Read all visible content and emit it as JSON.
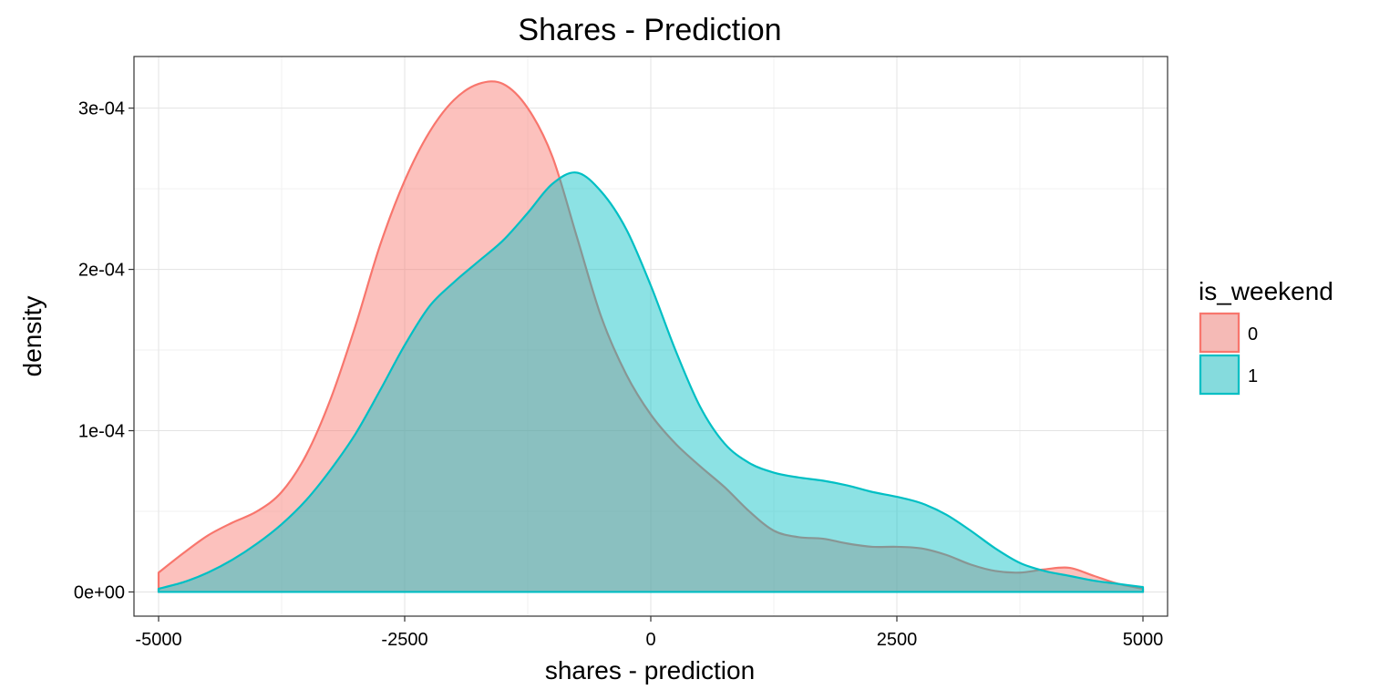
{
  "chart_data": {
    "type": "area",
    "title": "Shares - Prediction",
    "xlabel": "shares - prediction",
    "ylabel": "density",
    "xlim": [
      -5250,
      5250
    ],
    "ylim": [
      -1.5e-05,
      0.000332
    ],
    "x_ticks": [
      -5000,
      -2500,
      0,
      2500,
      5000
    ],
    "x_tick_labels": [
      "-5000",
      "-2500",
      "0",
      "2500",
      "5000"
    ],
    "y_ticks": [
      0,
      0.0001,
      0.0002,
      0.0003
    ],
    "y_tick_labels": [
      "0e+00",
      "1e-04",
      "2e-04",
      "3e-04"
    ],
    "grid": true,
    "legend": {
      "title": "is_weekend",
      "position": "right"
    },
    "series": [
      {
        "name": "0",
        "color": "#F8766D",
        "points": [
          [
            -5000,
            1.2e-05
          ],
          [
            -4750,
            2.4e-05
          ],
          [
            -4500,
            3.5e-05
          ],
          [
            -4250,
            4.3e-05
          ],
          [
            -4000,
            5e-05
          ],
          [
            -3750,
            6.2e-05
          ],
          [
            -3500,
            8.5e-05
          ],
          [
            -3250,
            0.00012
          ],
          [
            -3000,
            0.000165
          ],
          [
            -2750,
            0.000215
          ],
          [
            -2500,
            0.000255
          ],
          [
            -2250,
            0.000285
          ],
          [
            -2000,
            0.000305
          ],
          [
            -1750,
            0.000315
          ],
          [
            -1500,
            0.000315
          ],
          [
            -1250,
            0.0003
          ],
          [
            -1000,
            0.00027
          ],
          [
            -750,
            0.00022
          ],
          [
            -500,
            0.00017
          ],
          [
            -250,
            0.000135
          ],
          [
            0,
            0.00011
          ],
          [
            250,
            9.2e-05
          ],
          [
            500,
            7.8e-05
          ],
          [
            750,
            6.5e-05
          ],
          [
            1000,
            5e-05
          ],
          [
            1250,
            3.8e-05
          ],
          [
            1500,
            3.4e-05
          ],
          [
            1750,
            3.3e-05
          ],
          [
            2000,
            3e-05
          ],
          [
            2250,
            2.8e-05
          ],
          [
            2500,
            2.8e-05
          ],
          [
            2750,
            2.7e-05
          ],
          [
            3000,
            2.3e-05
          ],
          [
            3250,
            1.7e-05
          ],
          [
            3500,
            1.3e-05
          ],
          [
            3750,
            1.2e-05
          ],
          [
            4000,
            1.4e-05
          ],
          [
            4250,
            1.5e-05
          ],
          [
            4500,
            1e-05
          ],
          [
            4750,
            5e-06
          ],
          [
            5000,
            2e-06
          ]
        ]
      },
      {
        "name": "1",
        "color": "#00BFC4",
        "points": [
          [
            -5000,
            2e-06
          ],
          [
            -4750,
            6e-06
          ],
          [
            -4500,
            1.2e-05
          ],
          [
            -4250,
            2e-05
          ],
          [
            -4000,
            3e-05
          ],
          [
            -3750,
            4.2e-05
          ],
          [
            -3500,
            5.7e-05
          ],
          [
            -3250,
            7.6e-05
          ],
          [
            -3000,
            9.8e-05
          ],
          [
            -2750,
            0.000125
          ],
          [
            -2500,
            0.000153
          ],
          [
            -2250,
            0.000177
          ],
          [
            -2000,
            0.000192
          ],
          [
            -1750,
            0.000205
          ],
          [
            -1500,
            0.000218
          ],
          [
            -1250,
            0.000235
          ],
          [
            -1000,
            0.000253
          ],
          [
            -750,
            0.00026
          ],
          [
            -500,
            0.000248
          ],
          [
            -250,
            0.000225
          ],
          [
            0,
            0.00019
          ],
          [
            250,
            0.00015
          ],
          [
            500,
            0.000115
          ],
          [
            750,
            9.2e-05
          ],
          [
            1000,
            8e-05
          ],
          [
            1250,
            7.4e-05
          ],
          [
            1500,
            7.1e-05
          ],
          [
            1750,
            6.9e-05
          ],
          [
            2000,
            6.6e-05
          ],
          [
            2250,
            6.2e-05
          ],
          [
            2500,
            5.9e-05
          ],
          [
            2750,
            5.5e-05
          ],
          [
            3000,
            4.8e-05
          ],
          [
            3250,
            3.8e-05
          ],
          [
            3500,
            2.7e-05
          ],
          [
            3750,
            1.8e-05
          ],
          [
            4000,
            1.3e-05
          ],
          [
            4250,
            1e-05
          ],
          [
            4500,
            7e-06
          ],
          [
            4750,
            5e-06
          ],
          [
            5000,
            3e-06
          ]
        ]
      }
    ]
  }
}
